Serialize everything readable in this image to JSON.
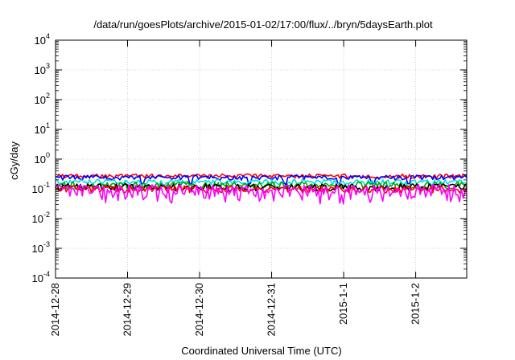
{
  "chart_data": {
    "type": "line",
    "title": "/data/run/goesPlots/archive/2015-01-02/17:00/flux/../bryn/5daysEarth.plot",
    "xlabel": "Coordinated Universal Time (UTC)",
    "ylabel": "cGy/day",
    "yscale": "log",
    "ylim": [
      0.0001,
      10000
    ],
    "xlim": [
      "2014-12-28",
      "2015-01-02T17:00"
    ],
    "y_ticks": [
      {
        "value": 0.0001,
        "base": "10",
        "exp": "-4"
      },
      {
        "value": 0.001,
        "base": "10",
        "exp": "-3"
      },
      {
        "value": 0.01,
        "base": "10",
        "exp": "-2"
      },
      {
        "value": 0.1,
        "base": "10",
        "exp": "-1"
      },
      {
        "value": 1,
        "base": "10",
        "exp": "0"
      },
      {
        "value": 10,
        "base": "10",
        "exp": "1"
      },
      {
        "value": 100,
        "base": "10",
        "exp": "2"
      },
      {
        "value": 1000,
        "base": "10",
        "exp": "3"
      },
      {
        "value": 10000,
        "base": "10",
        "exp": "4"
      }
    ],
    "x_ticks": [
      {
        "value": "2014-12-28",
        "label": "2014-12-28"
      },
      {
        "value": "2014-12-29",
        "label": "2014-12-29"
      },
      {
        "value": "2014-12-30",
        "label": "2014-12-30"
      },
      {
        "value": "2014-12-31",
        "label": "2014-12-31"
      },
      {
        "value": "2015-01-01",
        "label": "2015-1-1"
      },
      {
        "value": "2015-01-02",
        "label": "2015-1-2"
      }
    ],
    "grid": true,
    "series": [
      {
        "color": "#ff0000",
        "level": 0.27,
        "jitter": 0.05,
        "seed": 3
      },
      {
        "color": "#0000ff",
        "level": 0.24,
        "jitter": 0.05,
        "seed": 7,
        "dips": [
          0.21,
          0.33,
          0.47,
          0.56,
          0.69,
          0.77,
          0.86
        ]
      },
      {
        "color": "#00e0e0",
        "level": 0.17,
        "jitter": 0.04,
        "seed": 11,
        "dips": [
          0.21,
          0.33,
          0.56,
          0.86
        ]
      },
      {
        "color": "#00aa00",
        "level": 0.135,
        "jitter": 0.04,
        "seed": 13
      },
      {
        "color": "#000000",
        "level": 0.115,
        "jitter": 0.035,
        "seed": 17
      },
      {
        "color": "#ff0000",
        "level": 0.1,
        "jitter": 0.03,
        "seed": 19
      },
      {
        "color": "#ff00ff",
        "level": 0.085,
        "jitter": 0.06,
        "seed": 23
      }
    ]
  }
}
